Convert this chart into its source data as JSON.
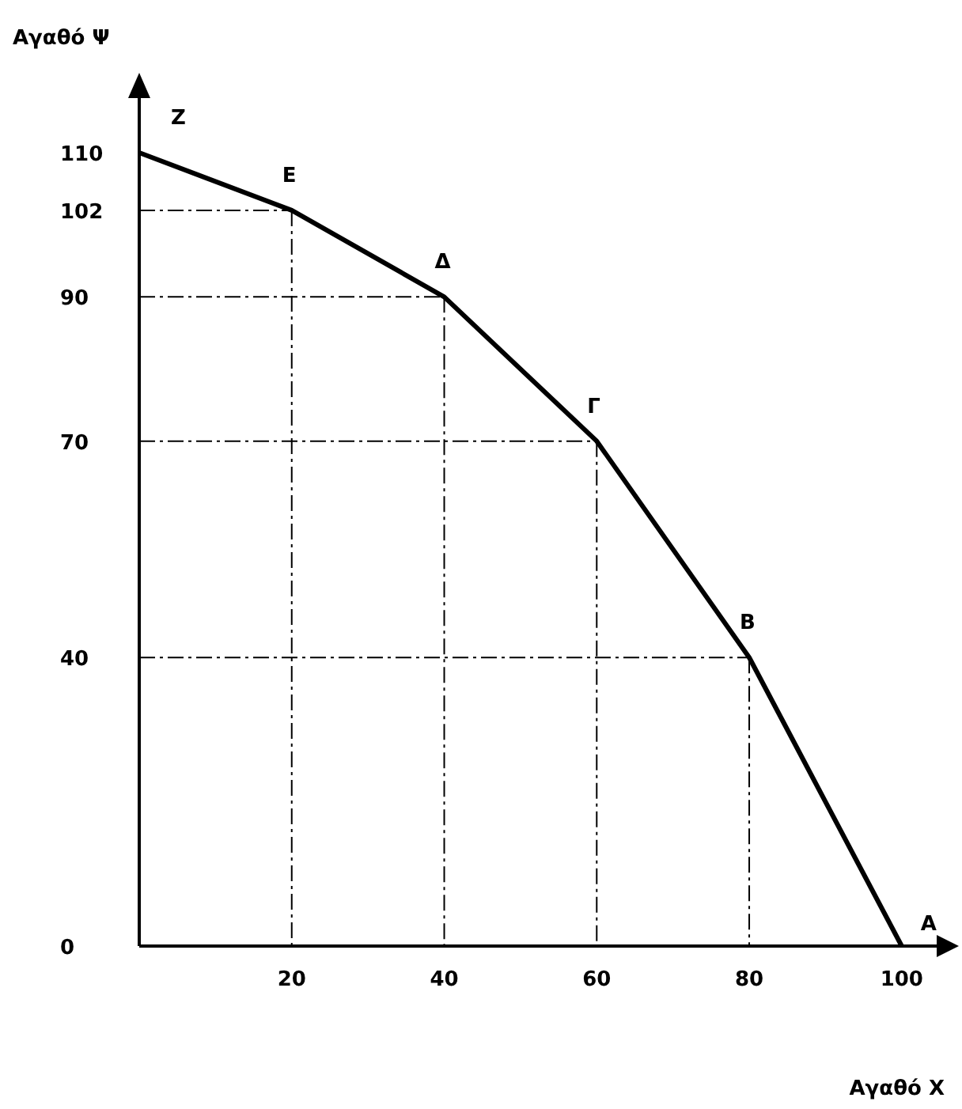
{
  "chart_data": {
    "type": "line",
    "xlabel": "Αγαθό X",
    "ylabel": "Αγαθό Ψ",
    "x": [
      0,
      20,
      40,
      60,
      80,
      100
    ],
    "series": [
      {
        "color": "#000000",
        "values": [
          110,
          102,
          90,
          70,
          40,
          0
        ]
      }
    ],
    "xlim": [
      0,
      105
    ],
    "ylim": [
      0,
      118
    ],
    "xticks": [
      20,
      40,
      60,
      80,
      100
    ],
    "yticks": [
      0,
      40,
      70,
      90,
      102,
      110
    ],
    "grid": true,
    "marker": "none",
    "line_style": "solid",
    "annotations": [
      {
        "text": "Z",
        "x": 0,
        "y": 110
      },
      {
        "text": "E",
        "x": 20,
        "y": 102
      },
      {
        "text": "Δ",
        "x": 40,
        "y": 90
      },
      {
        "text": "Γ",
        "x": 60,
        "y": 70
      },
      {
        "text": "B",
        "x": 80,
        "y": 40
      },
      {
        "text": "A",
        "x": 100,
        "y": 0
      }
    ]
  }
}
